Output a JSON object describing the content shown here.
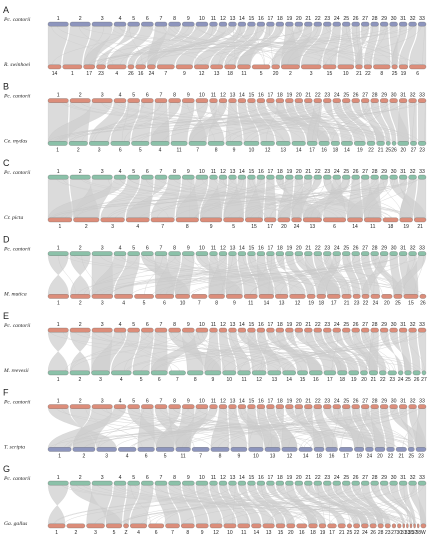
{
  "figure": {
    "colors": {
      "link": "#cfcfcf",
      "blue": "#8d95bd",
      "red": "#dc8d7a",
      "green": "#8bc1a9"
    },
    "panels": [
      {
        "letter": "A",
        "top_species": "Pc. cantorii",
        "bottom_species": "R. swinhoei",
        "top_color": "blue",
        "bottom_color": "red",
        "top_labels": [
          "1",
          "2",
          "3",
          "4",
          "5",
          "6",
          "7",
          "8",
          "9",
          "10",
          "11",
          "12",
          "13",
          "14",
          "15",
          "16",
          "17",
          "18",
          "19",
          "20",
          "21",
          "22",
          "23",
          "24",
          "25",
          "26",
          "27",
          "28",
          "29",
          "30",
          "31",
          "32",
          "33"
        ],
        "bottom_labels": [
          "14",
          "1",
          "17",
          "23",
          "4",
          "26",
          "16",
          "24",
          "7",
          "9",
          "12",
          "13",
          "18",
          "11",
          "5",
          "20",
          "2",
          "3",
          "15",
          "10",
          "21",
          "22",
          "8",
          "25",
          "19",
          "6"
        ]
      },
      {
        "letter": "B",
        "top_species": "Pc. cantorii",
        "bottom_species": "Ce. mydas",
        "top_color": "red",
        "bottom_color": "green",
        "top_labels": [
          "1",
          "2",
          "3",
          "4",
          "5",
          "6",
          "7",
          "8",
          "9",
          "10",
          "11",
          "12",
          "13",
          "14",
          "15",
          "16",
          "17",
          "18",
          "19",
          "20",
          "21",
          "22",
          "23",
          "24",
          "25",
          "26",
          "27",
          "28",
          "29",
          "30",
          "31",
          "32",
          "33"
        ],
        "bottom_labels": [
          "1",
          "2",
          "3",
          "6",
          "5",
          "4",
          "11",
          "7",
          "8",
          "9",
          "10",
          "12",
          "13",
          "14",
          "17",
          "16",
          "18",
          "14",
          "19",
          "22",
          "21",
          "25",
          "26",
          "20",
          "27",
          "23"
        ]
      },
      {
        "letter": "C",
        "top_species": "Pc. cantorii",
        "bottom_species": "Cr. picta",
        "top_color": "green",
        "bottom_color": "red",
        "top_labels": [
          "1",
          "2",
          "3",
          "4",
          "5",
          "6",
          "7",
          "8",
          "9",
          "10",
          "11",
          "12",
          "13",
          "14",
          "15",
          "16",
          "17",
          "18",
          "19",
          "20",
          "21",
          "22",
          "23",
          "24",
          "25",
          "26",
          "27",
          "28",
          "29",
          "30",
          "31",
          "32",
          "33"
        ],
        "bottom_labels": [
          "1",
          "2",
          "3",
          "4",
          "7",
          "8",
          "9",
          "5",
          "15",
          "17",
          "20",
          "24",
          "13",
          "6",
          "14",
          "11",
          "18",
          "19",
          "21"
        ]
      },
      {
        "letter": "D",
        "top_species": "Pc. cantorii",
        "bottom_species": "M. mutica",
        "top_color": "green",
        "bottom_color": "red",
        "top_labels": [
          "1",
          "2",
          "3",
          "4",
          "5",
          "6",
          "7",
          "8",
          "9",
          "10",
          "11",
          "12",
          "13",
          "14",
          "15",
          "16",
          "17",
          "18",
          "19",
          "20",
          "21",
          "22",
          "23",
          "24",
          "25",
          "26",
          "27",
          "28",
          "29",
          "30",
          "31",
          "32",
          "33"
        ],
        "bottom_labels": [
          "1",
          "2",
          "3",
          "4",
          "5",
          "6",
          "10",
          "7",
          "8",
          "9",
          "11",
          "14",
          "13",
          "12",
          "19",
          "18",
          "17",
          "21",
          "23",
          "22",
          "24",
          "20",
          "25",
          "15",
          "26"
        ]
      },
      {
        "letter": "E",
        "top_species": "Pc. cantorii",
        "bottom_species": "M. reevesii",
        "top_color": "red",
        "bottom_color": "green",
        "top_labels": [
          "1",
          "2",
          "3",
          "4",
          "5",
          "6",
          "7",
          "8",
          "9",
          "10",
          "11",
          "12",
          "13",
          "14",
          "15",
          "16",
          "17",
          "18",
          "19",
          "20",
          "21",
          "22",
          "23",
          "24",
          "25",
          "26",
          "27",
          "28",
          "29",
          "30",
          "31",
          "32",
          "33"
        ],
        "bottom_labels": [
          "1",
          "2",
          "3",
          "4",
          "5",
          "6",
          "7",
          "8",
          "9",
          "10",
          "11",
          "12",
          "13",
          "14",
          "15",
          "16",
          "17",
          "18",
          "19",
          "20",
          "21",
          "22",
          "23",
          "24",
          "25",
          "26",
          "27"
        ]
      },
      {
        "letter": "F",
        "top_species": "Pc. cantorii",
        "bottom_species": "T. scripta",
        "top_color": "red",
        "bottom_color": "blue",
        "top_labels": [
          "1",
          "2",
          "3",
          "4",
          "5",
          "6",
          "7",
          "8",
          "9",
          "10",
          "11",
          "12",
          "13",
          "14",
          "15",
          "16",
          "17",
          "18",
          "19",
          "20",
          "21",
          "22",
          "23",
          "24",
          "25",
          "26",
          "27",
          "28",
          "29",
          "30",
          "31",
          "32",
          "33"
        ],
        "bottom_labels": [
          "1",
          "2",
          "3",
          "4",
          "6",
          "5",
          "11",
          "7",
          "8",
          "9",
          "10",
          "13",
          "12",
          "14",
          "18",
          "16",
          "17",
          "19",
          "24",
          "20",
          "22",
          "21",
          "25",
          "23"
        ]
      },
      {
        "letter": "G",
        "top_species": "Pc. cantorii",
        "bottom_species": "Ga. gallus",
        "top_color": "green",
        "bottom_color": "red",
        "top_labels": [
          "1",
          "2",
          "3",
          "4",
          "5",
          "6",
          "7",
          "8",
          "9",
          "10",
          "11",
          "12",
          "13",
          "14",
          "15",
          "16",
          "17",
          "18",
          "19",
          "20",
          "21",
          "22",
          "23",
          "24",
          "25",
          "26",
          "27",
          "28",
          "29",
          "30",
          "31",
          "32",
          "33"
        ],
        "bottom_labels": [
          "1",
          "2",
          "3",
          "5",
          "Z",
          "4",
          "6",
          "7",
          "8",
          "9",
          "12",
          "10",
          "11",
          "14",
          "13",
          "15",
          "20",
          "16",
          "18",
          "19",
          "17",
          "21",
          "25",
          "22",
          "24",
          "26",
          "28",
          "23",
          "27",
          "30",
          "31",
          "33",
          "35",
          "37",
          "38",
          "W"
        ]
      }
    ]
  }
}
